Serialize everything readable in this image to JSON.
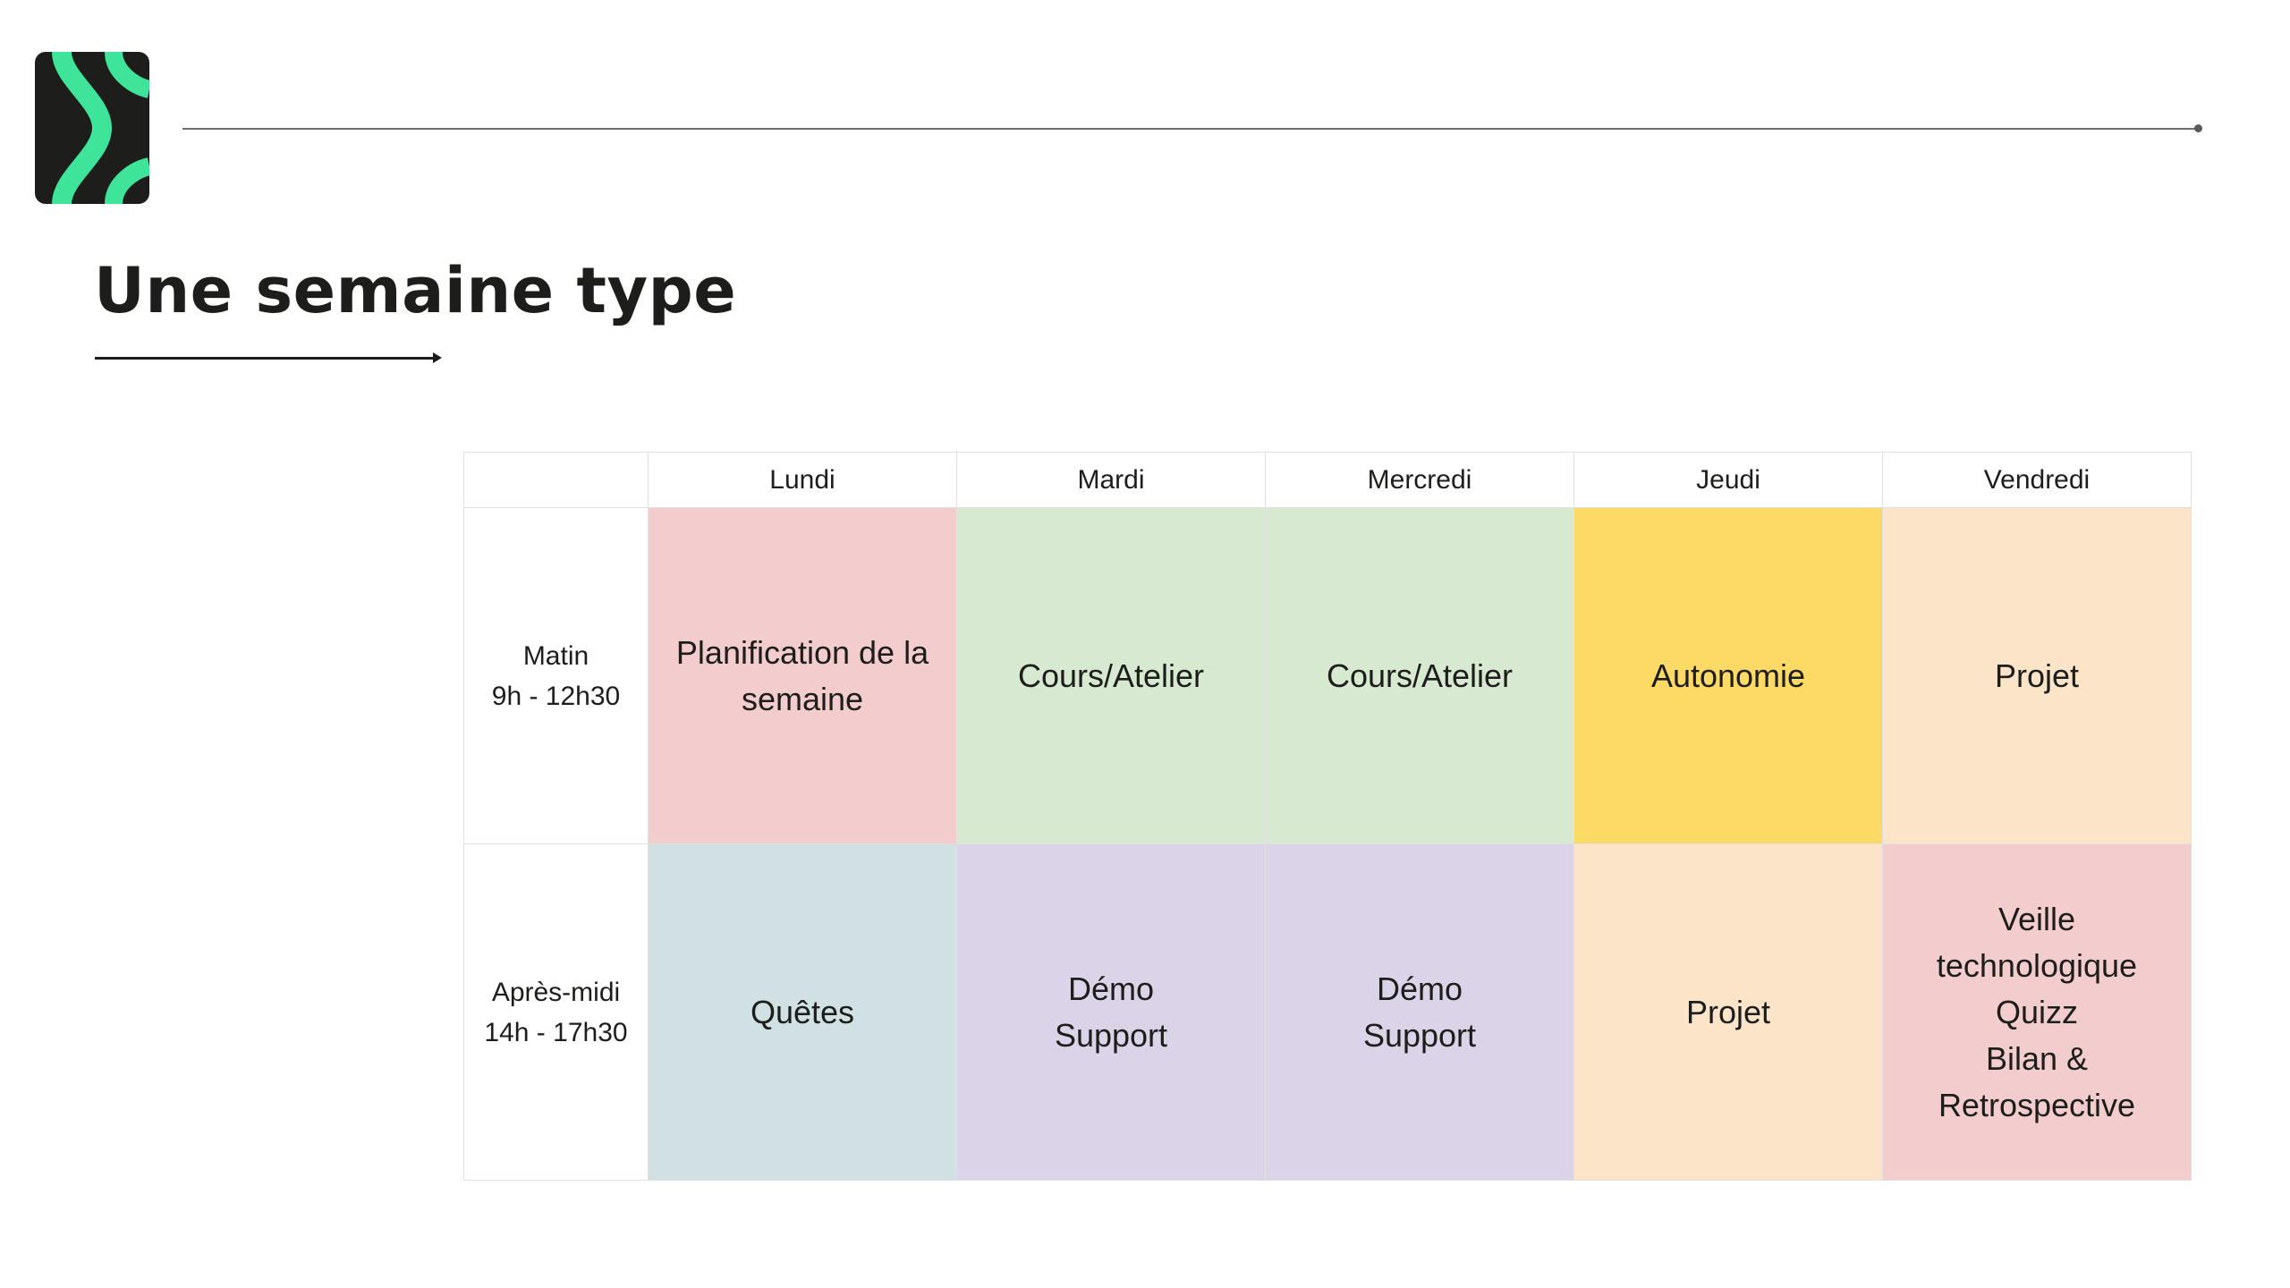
{
  "colors": {
    "logo_background": "#1d1d1b",
    "logo_accent": "#3ee49a",
    "text": "#1d1d1b",
    "pink": "#f3cdcd",
    "green": "#d8e9d2",
    "yellow": "#fdd966",
    "peach": "#fce4c9",
    "blue_grey": "#d1e0e3",
    "lavender": "#dbd3e8"
  },
  "logo": {
    "icon": "brand-chevron-logo"
  },
  "page": {
    "title": "Une semaine type"
  },
  "schedule": {
    "days": [
      "Lundi",
      "Mardi",
      "Mercredi",
      "Jeudi",
      "Vendredi"
    ],
    "rows": [
      {
        "slot": {
          "name": "Matin",
          "hours": "9h - 12h30"
        },
        "cells": [
          {
            "lines": [
              "Planification de la",
              "semaine"
            ],
            "color": "#f3cdcd"
          },
          {
            "lines": [
              "Cours/Atelier"
            ],
            "color": "#d8e9d2"
          },
          {
            "lines": [
              "Cours/Atelier"
            ],
            "color": "#d8e9d2"
          },
          {
            "lines": [
              "Autonomie"
            ],
            "color": "#fdd966"
          },
          {
            "lines": [
              "Projet"
            ],
            "color": "#fce4c9"
          }
        ]
      },
      {
        "slot": {
          "name": "Après-midi",
          "hours": "14h - 17h30"
        },
        "cells": [
          {
            "lines": [
              "Quêtes"
            ],
            "color": "#d1e0e3"
          },
          {
            "lines": [
              "Démo",
              "Support"
            ],
            "color": "#dbd3e8"
          },
          {
            "lines": [
              "Démo",
              "Support"
            ],
            "color": "#dbd3e8"
          },
          {
            "lines": [
              "Projet"
            ],
            "color": "#fce4c9"
          },
          {
            "lines": [
              "Veille",
              "technologique",
              "Quizz",
              "Bilan &",
              "Retrospective"
            ],
            "color": "#f3cdcd"
          }
        ]
      }
    ]
  }
}
